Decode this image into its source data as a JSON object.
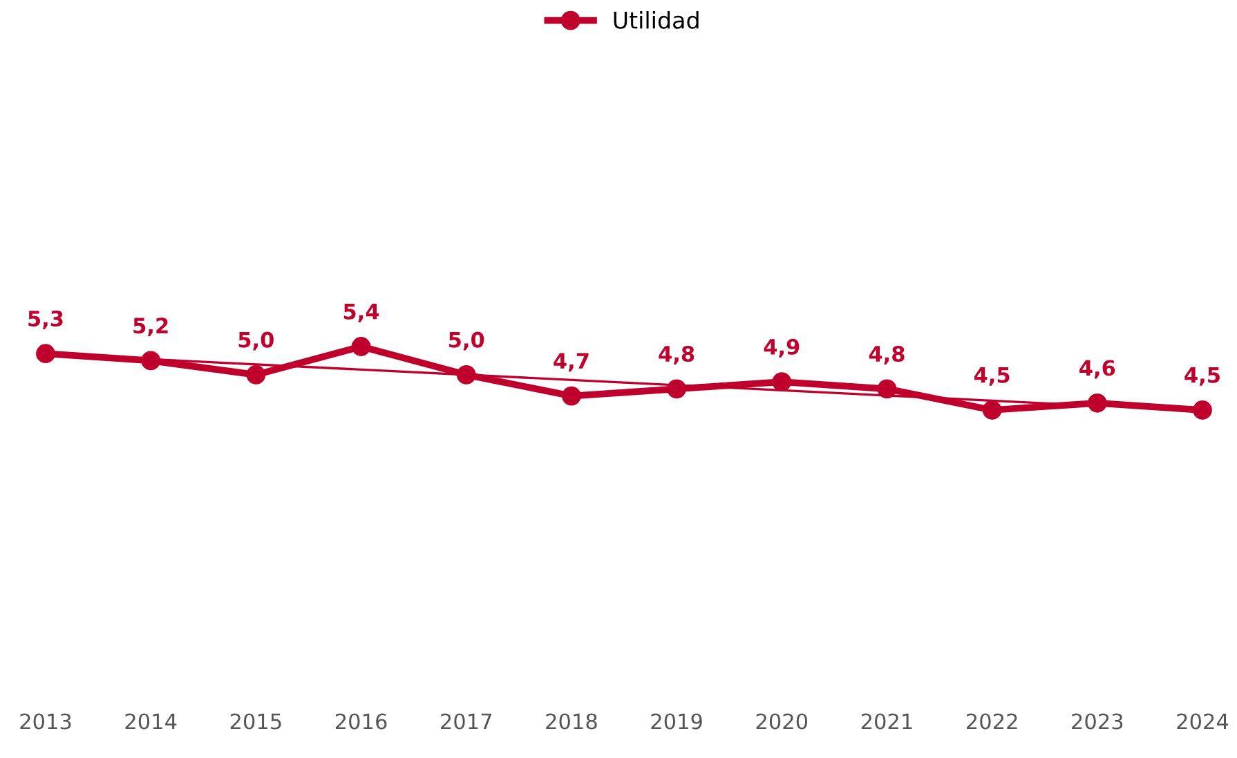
{
  "chart_data": {
    "type": "line",
    "x": [
      2013,
      2014,
      2015,
      2016,
      2017,
      2018,
      2019,
      2020,
      2021,
      2022,
      2023,
      2024
    ],
    "xlim": [
      2013,
      2024
    ],
    "xticks": [
      2013,
      2014,
      2015,
      2016,
      2017,
      2018,
      2019,
      2020,
      2021,
      2022,
      2023,
      2024
    ],
    "tick_labels": "x",
    "legend": "top",
    "marker": "circle",
    "grid": false,
    "series": [
      {
        "name": "Utilidad",
        "color": "#c0002c",
        "values": [
          5.3,
          5.2,
          5.0,
          5.4,
          5.0,
          4.7,
          4.8,
          4.9,
          4.8,
          4.5,
          4.6,
          4.5
        ],
        "value_labels": [
          "5,3",
          "5,2",
          "5,0",
          "5,4",
          "5,0",
          "4,7",
          "4,8",
          "4,9",
          "4,8",
          "4,5",
          "4,6",
          "4,5"
        ]
      },
      {
        "type": "line",
        "color": "#c0002c",
        "x": [
          2014,
          2023
        ],
        "values": [
          5.22,
          4.56
        ],
        "marker": "none"
      }
    ]
  }
}
